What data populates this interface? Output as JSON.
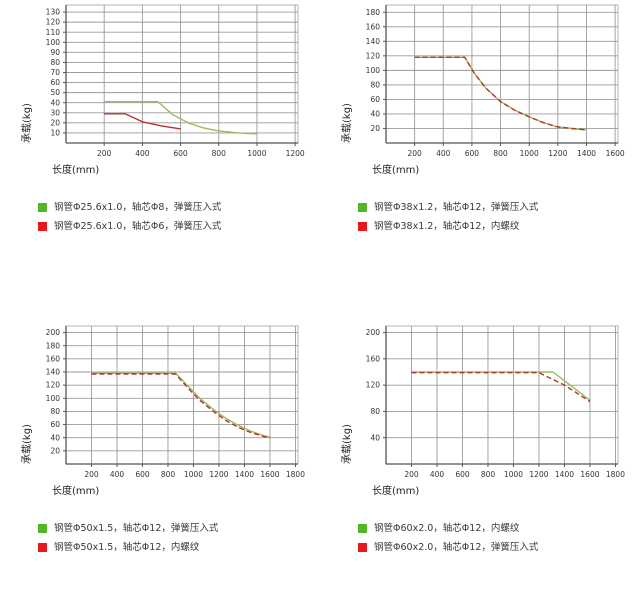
{
  "colors": {
    "green_line": "#9cba5e",
    "red_line": "#b2342e",
    "legend_green": "#53b62a",
    "legend_red": "#e5191c",
    "grid": "#9a9a9a",
    "border": "#b5b5b5",
    "axis": "#555555",
    "tick_text": "#333333",
    "axis_label_text": "#222222"
  },
  "chart_data": [
    {
      "type": "line",
      "ylabel": "承载(kg)",
      "xlabel": "长度(mm)",
      "y_ticks": [
        10,
        20,
        30,
        40,
        50,
        60,
        70,
        80,
        90,
        100,
        110,
        120,
        130
      ],
      "x_ticks": [
        200,
        400,
        600,
        800,
        1000,
        1200
      ],
      "y_range": [
        0,
        137
      ],
      "x_range": [
        0,
        1215
      ],
      "grid": "on",
      "legend_position": "below",
      "series": [
        {
          "name": "钢管Φ25.6x1.0，轴芯Φ8，弹簧压入式",
          "color": "green",
          "dash": false,
          "points": [
            [
              200,
              41
            ],
            [
              480,
              41
            ],
            [
              560,
              28
            ],
            [
              640,
              20
            ],
            [
              720,
              15
            ],
            [
              800,
              12
            ],
            [
              900,
              10
            ],
            [
              1000,
              9
            ]
          ]
        },
        {
          "name": "钢管Φ25.6x1.0，轴芯Φ6，弹簧压入式",
          "color": "red",
          "dash": false,
          "points": [
            [
              200,
              29
            ],
            [
              310,
              29
            ],
            [
              400,
              21
            ],
            [
              500,
              17
            ],
            [
              600,
              14
            ]
          ]
        }
      ],
      "legend": [
        {
          "swatch": "green",
          "label": "钢管Φ25.6x1.0，轴芯Φ8，弹簧压入式"
        },
        {
          "swatch": "red",
          "label": "钢管Φ25.6x1.0，轴芯Φ6，弹簧压入式"
        }
      ]
    },
    {
      "type": "line",
      "ylabel": "承载(kg)",
      "xlabel": "长度(mm)",
      "y_ticks": [
        20,
        40,
        60,
        80,
        100,
        120,
        140,
        160,
        180
      ],
      "x_ticks": [
        200,
        400,
        600,
        800,
        1000,
        1200,
        1400,
        1600
      ],
      "y_range": [
        0,
        190
      ],
      "x_range": [
        0,
        1620
      ],
      "grid": "on",
      "legend_position": "below",
      "series": [
        {
          "name": "钢管Φ38x1.2，轴芯Φ12，弹簧压入式",
          "color": "green",
          "dash": false,
          "points": [
            [
              200,
              118
            ],
            [
              550,
              118
            ],
            [
              620,
              95
            ],
            [
              700,
              75
            ],
            [
              800,
              57
            ],
            [
              900,
              45
            ],
            [
              1000,
              36
            ],
            [
              1100,
              28
            ],
            [
              1200,
              22
            ],
            [
              1300,
              20
            ],
            [
              1400,
              18
            ]
          ]
        },
        {
          "name": "钢管Φ38x1.2，轴芯Φ12，内螺纹",
          "color": "red",
          "dash": true,
          "points": [
            [
              200,
              118
            ],
            [
              550,
              118
            ],
            [
              620,
              95
            ],
            [
              700,
              75
            ],
            [
              800,
              57
            ],
            [
              900,
              45
            ],
            [
              1000,
              36
            ],
            [
              1100,
              28
            ],
            [
              1200,
              22
            ],
            [
              1300,
              20
            ],
            [
              1400,
              18
            ]
          ]
        }
      ],
      "legend": [
        {
          "swatch": "green",
          "label": "钢管Φ38x1.2，轴芯Φ12，弹簧压入式"
        },
        {
          "swatch": "red",
          "label": "钢管Φ38x1.2，轴芯Φ12，内螺纹"
        }
      ]
    },
    {
      "type": "line",
      "ylabel": "承载(kg)",
      "xlabel": "长度(mm)",
      "y_ticks": [
        20,
        40,
        60,
        80,
        100,
        120,
        140,
        160,
        180,
        200
      ],
      "x_ticks": [
        200,
        400,
        600,
        800,
        1000,
        1200,
        1400,
        1600,
        1800
      ],
      "y_range": [
        0,
        210
      ],
      "x_range": [
        0,
        1820
      ],
      "grid": "on",
      "legend_position": "below",
      "series": [
        {
          "name": "钢管Φ50x1.5，轴芯Φ12，弹簧压入式",
          "color": "green",
          "dash": false,
          "points": [
            [
              200,
              138
            ],
            [
              860,
              138
            ],
            [
              950,
              120
            ],
            [
              1050,
              100
            ],
            [
              1150,
              84
            ],
            [
              1250,
              70
            ],
            [
              1350,
              59
            ],
            [
              1450,
              50
            ],
            [
              1550,
              43
            ],
            [
              1600,
              41
            ]
          ]
        },
        {
          "name": "钢管Φ50x1.5，轴芯Φ12，内螺纹",
          "color": "red",
          "dash": true,
          "points": [
            [
              200,
              137
            ],
            [
              860,
              137
            ],
            [
              950,
              117
            ],
            [
              1050,
              97
            ],
            [
              1150,
              81
            ],
            [
              1250,
              67
            ],
            [
              1350,
              56
            ],
            [
              1450,
              48
            ],
            [
              1550,
              42
            ],
            [
              1600,
              40
            ]
          ]
        }
      ],
      "legend": [
        {
          "swatch": "green",
          "label": "钢管Φ50x1.5，轴芯Φ12，弹簧压入式"
        },
        {
          "swatch": "red",
          "label": "钢管Φ50x1.5，轴芯Φ12，内螺纹"
        }
      ]
    },
    {
      "type": "line",
      "ylabel": "承载(kg)",
      "xlabel": "长度(mm)",
      "y_ticks": [
        40,
        80,
        120,
        160,
        200
      ],
      "x_ticks": [
        200,
        400,
        600,
        800,
        1000,
        1200,
        1400,
        1600,
        1800
      ],
      "y_range": [
        0,
        210
      ],
      "x_range": [
        0,
        1820
      ],
      "grid": "on",
      "legend_position": "below",
      "series": [
        {
          "name": "钢管Φ60x2.0，轴芯Φ12，内螺纹",
          "color": "green",
          "dash": false,
          "points": [
            [
              200,
              140
            ],
            [
              1310,
              140
            ],
            [
              1600,
              97
            ]
          ]
        },
        {
          "name": "钢管Φ60x2.0，轴芯Φ12，弹簧压入式",
          "color": "red",
          "dash": true,
          "points": [
            [
              200,
              139
            ],
            [
              1200,
              139
            ],
            [
              1400,
              120
            ],
            [
              1600,
              95
            ]
          ]
        }
      ],
      "legend": [
        {
          "swatch": "green",
          "label": "钢管Φ60x2.0，轴芯Φ12，内螺纹"
        },
        {
          "swatch": "red",
          "label": "钢管Φ60x2.0，轴芯Φ12，弹簧压入式"
        }
      ]
    }
  ]
}
